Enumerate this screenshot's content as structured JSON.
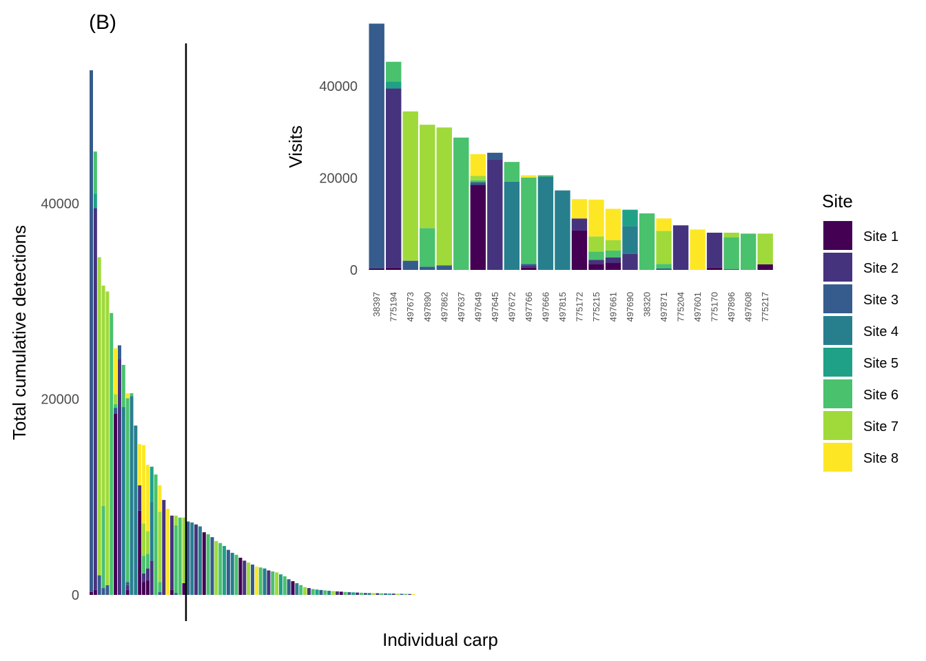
{
  "panel_label": "(B)",
  "colors": {
    "Site 1": "#440154",
    "Site 2": "#46337E",
    "Site 3": "#365C8D",
    "Site 4": "#277F8E",
    "Site 5": "#1FA187",
    "Site 6": "#4AC16D",
    "Site 7": "#9FDA3A",
    "Site 8": "#FDE725"
  },
  "legend": {
    "title": "Site",
    "items": [
      "Site 1",
      "Site 2",
      "Site 3",
      "Site 4",
      "Site 5",
      "Site 6",
      "Site 7",
      "Site 8"
    ]
  },
  "chart_data": [
    {
      "type": "bar",
      "stacked": true,
      "title": "",
      "xlabel": "Individual carp",
      "ylabel": "Total cumulative detections",
      "ylim": [
        0,
        54000
      ],
      "yticks": [
        0,
        20000,
        40000
      ],
      "x_tick_labels_shown": false,
      "vertical_line_after_bar": 23,
      "bars": [
        {
          "Site 1": 300,
          "Site 3": 53300
        },
        {
          "Site 1": 500,
          "Site 2": 39000,
          "Site 5": 1500,
          "Site 6": 4300
        },
        {
          "Site 3": 2000,
          "Site 7": 32500
        },
        {
          "Site 3": 700,
          "Site 6": 8400,
          "Site 7": 22500
        },
        {
          "Site 3": 1000,
          "Site 7": 30000
        },
        {
          "Site 6": 28800
        },
        {
          "Site 1": 18500,
          "Site 3": 600,
          "Site 6": 400,
          "Site 7": 1000,
          "Site 8": 4700
        },
        {
          "Site 2": 24100,
          "Site 3": 1400
        },
        {
          "Site 4": 19200,
          "Site 6": 4300
        },
        {
          "Site 1": 500,
          "Site 2": 500,
          "Site 3": 300,
          "Site 6": 18800,
          "Site 8": 500
        },
        {
          "Site 4": 20300,
          "Site 6": 300
        },
        {
          "Site 4": 17300
        },
        {
          "Site 1": 8600,
          "Site 2": 2600,
          "Site 8": 4200
        },
        {
          "Site 1": 1300,
          "Site 2": 900,
          "Site 6": 1800,
          "Site 7": 3300,
          "Site 8": 8000
        },
        {
          "Site 1": 1500,
          "Site 2": 1200,
          "Site 6": 1500,
          "Site 7": 2300,
          "Site 8": 6800
        },
        {
          "Site 2": 3500,
          "Site 4": 6000,
          "Site 5": 3600
        },
        {
          "Site 6": 12300
        },
        {
          "Site 3": 300,
          "Site 6": 1000,
          "Site 7": 7200,
          "Site 8": 2700
        },
        {
          "Site 2": 9700
        },
        {
          "Site 8": 8800
        },
        {
          "Site 1": 500,
          "Site 2": 7600
        },
        {
          "Site 3": 200,
          "Site 6": 6900,
          "Site 7": 1000
        },
        {
          "Site 6": 7900
        },
        {
          "Site 1": 1200,
          "Site 7": 6700
        },
        {
          "Site 3": 7500
        },
        {
          "Site 4": 7400
        },
        {
          "Site 2": 7200
        },
        {
          "Site 4": 7000
        },
        {
          "Site 1": 6400
        },
        {
          "Site 6": 6200
        },
        {
          "Site 3": 5900
        },
        {
          "Site 7": 5500
        },
        {
          "Site 6": 5300
        },
        {
          "Site 5": 5000
        },
        {
          "Site 3": 4600
        },
        {
          "Site 4": 4300
        },
        {
          "Site 6": 4100
        },
        {
          "Site 1": 3800
        },
        {
          "Site 2": 3500
        },
        {
          "Site 7": 3300
        },
        {
          "Site 3": 3100
        },
        {
          "Site 8": 2900
        },
        {
          "Site 6": 2800
        },
        {
          "Site 4": 2700
        },
        {
          "Site 2": 2500
        },
        {
          "Site 6": 2400
        },
        {
          "Site 7": 2300
        },
        {
          "Site 5": 2100
        },
        {
          "Site 6": 1900
        },
        {
          "Site 3": 1600
        },
        {
          "Site 1": 1400
        },
        {
          "Site 4": 1200
        },
        {
          "Site 6": 1000
        },
        {
          "Site 7": 800
        },
        {
          "Site 2": 700
        },
        {
          "Site 6": 600
        },
        {
          "Site 5": 550
        },
        {
          "Site 3": 500
        },
        {
          "Site 6": 460
        },
        {
          "Site 4": 420
        },
        {
          "Site 7": 390
        },
        {
          "Site 2": 360
        },
        {
          "Site 1": 330
        },
        {
          "Site 6": 300
        },
        {
          "Site 3": 280
        },
        {
          "Site 5": 260
        },
        {
          "Site 2": 240
        },
        {
          "Site 6": 220
        },
        {
          "Site 3": 200
        },
        {
          "Site 4": 190
        },
        {
          "Site 7": 180
        },
        {
          "Site 2": 170
        },
        {
          "Site 6": 160
        },
        {
          "Site 3": 150
        },
        {
          "Site 5": 140
        },
        {
          "Site 2": 130
        },
        {
          "Site 7": 120
        },
        {
          "Site 3": 110
        },
        {
          "Site 6": 100
        },
        {
          "Site 2": 90
        },
        {
          "Site 8": 80
        }
      ]
    },
    {
      "type": "bar",
      "stacked": true,
      "title": "",
      "xlabel": "",
      "ylabel": "Visits",
      "ylim": [
        0,
        53800
      ],
      "yticks": [
        0,
        20000,
        40000
      ],
      "categories": [
        "38397",
        "775194",
        "497673",
        "497890",
        "497862",
        "497637",
        "497649",
        "497645",
        "497672",
        "497766",
        "497666",
        "497815",
        "775172",
        "775215",
        "497661",
        "497690",
        "38320",
        "497871",
        "775204",
        "497601",
        "775170",
        "497896",
        "497608",
        "775217"
      ],
      "bars": [
        {
          "Site 1": 300,
          "Site 3": 53300
        },
        {
          "Site 1": 500,
          "Site 2": 39000,
          "Site 5": 1500,
          "Site 6": 4300
        },
        {
          "Site 3": 2000,
          "Site 7": 32500
        },
        {
          "Site 3": 700,
          "Site 6": 8400,
          "Site 7": 22500
        },
        {
          "Site 3": 1000,
          "Site 7": 30000
        },
        {
          "Site 6": 28800
        },
        {
          "Site 1": 18500,
          "Site 3": 600,
          "Site 6": 400,
          "Site 7": 1000,
          "Site 8": 4700
        },
        {
          "Site 2": 24100,
          "Site 3": 1400
        },
        {
          "Site 4": 19200,
          "Site 6": 4300
        },
        {
          "Site 1": 500,
          "Site 2": 500,
          "Site 3": 300,
          "Site 6": 18800,
          "Site 8": 500
        },
        {
          "Site 4": 20300,
          "Site 6": 300
        },
        {
          "Site 4": 17300
        },
        {
          "Site 1": 8600,
          "Site 2": 2600,
          "Site 8": 4200
        },
        {
          "Site 1": 1300,
          "Site 2": 900,
          "Site 6": 1800,
          "Site 7": 3300,
          "Site 8": 8000
        },
        {
          "Site 1": 1500,
          "Site 2": 1200,
          "Site 6": 1500,
          "Site 7": 2300,
          "Site 8": 6800
        },
        {
          "Site 2": 3500,
          "Site 4": 6000,
          "Site 5": 3600
        },
        {
          "Site 6": 12300
        },
        {
          "Site 3": 300,
          "Site 6": 1000,
          "Site 7": 7200,
          "Site 8": 2700
        },
        {
          "Site 2": 9700
        },
        {
          "Site 8": 8800
        },
        {
          "Site 1": 500,
          "Site 2": 7600
        },
        {
          "Site 3": 200,
          "Site 6": 6900,
          "Site 7": 1000
        },
        {
          "Site 6": 7900
        },
        {
          "Site 1": 1200,
          "Site 7": 6700
        }
      ]
    }
  ]
}
